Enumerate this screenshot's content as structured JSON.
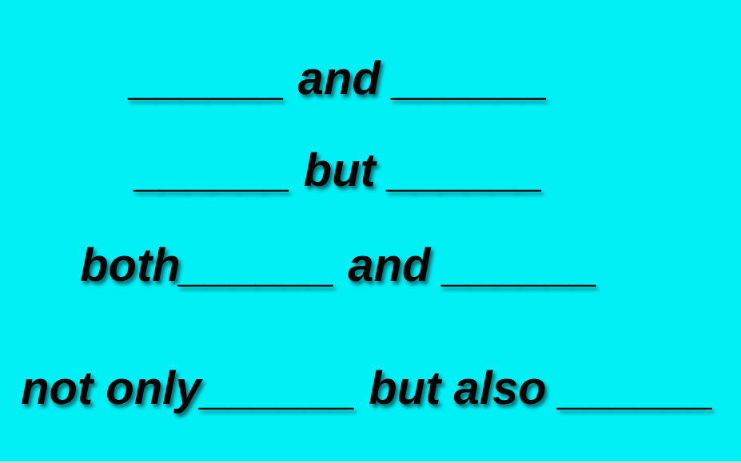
{
  "slide": {
    "background_color": "#00F0F6",
    "text_color": "#050505",
    "lines": [
      {
        "text": "______ and ______"
      },
      {
        "text": "______ but ______"
      },
      {
        "text": "both______ and ______"
      },
      {
        "text": "not only______ but also ______"
      }
    ]
  }
}
